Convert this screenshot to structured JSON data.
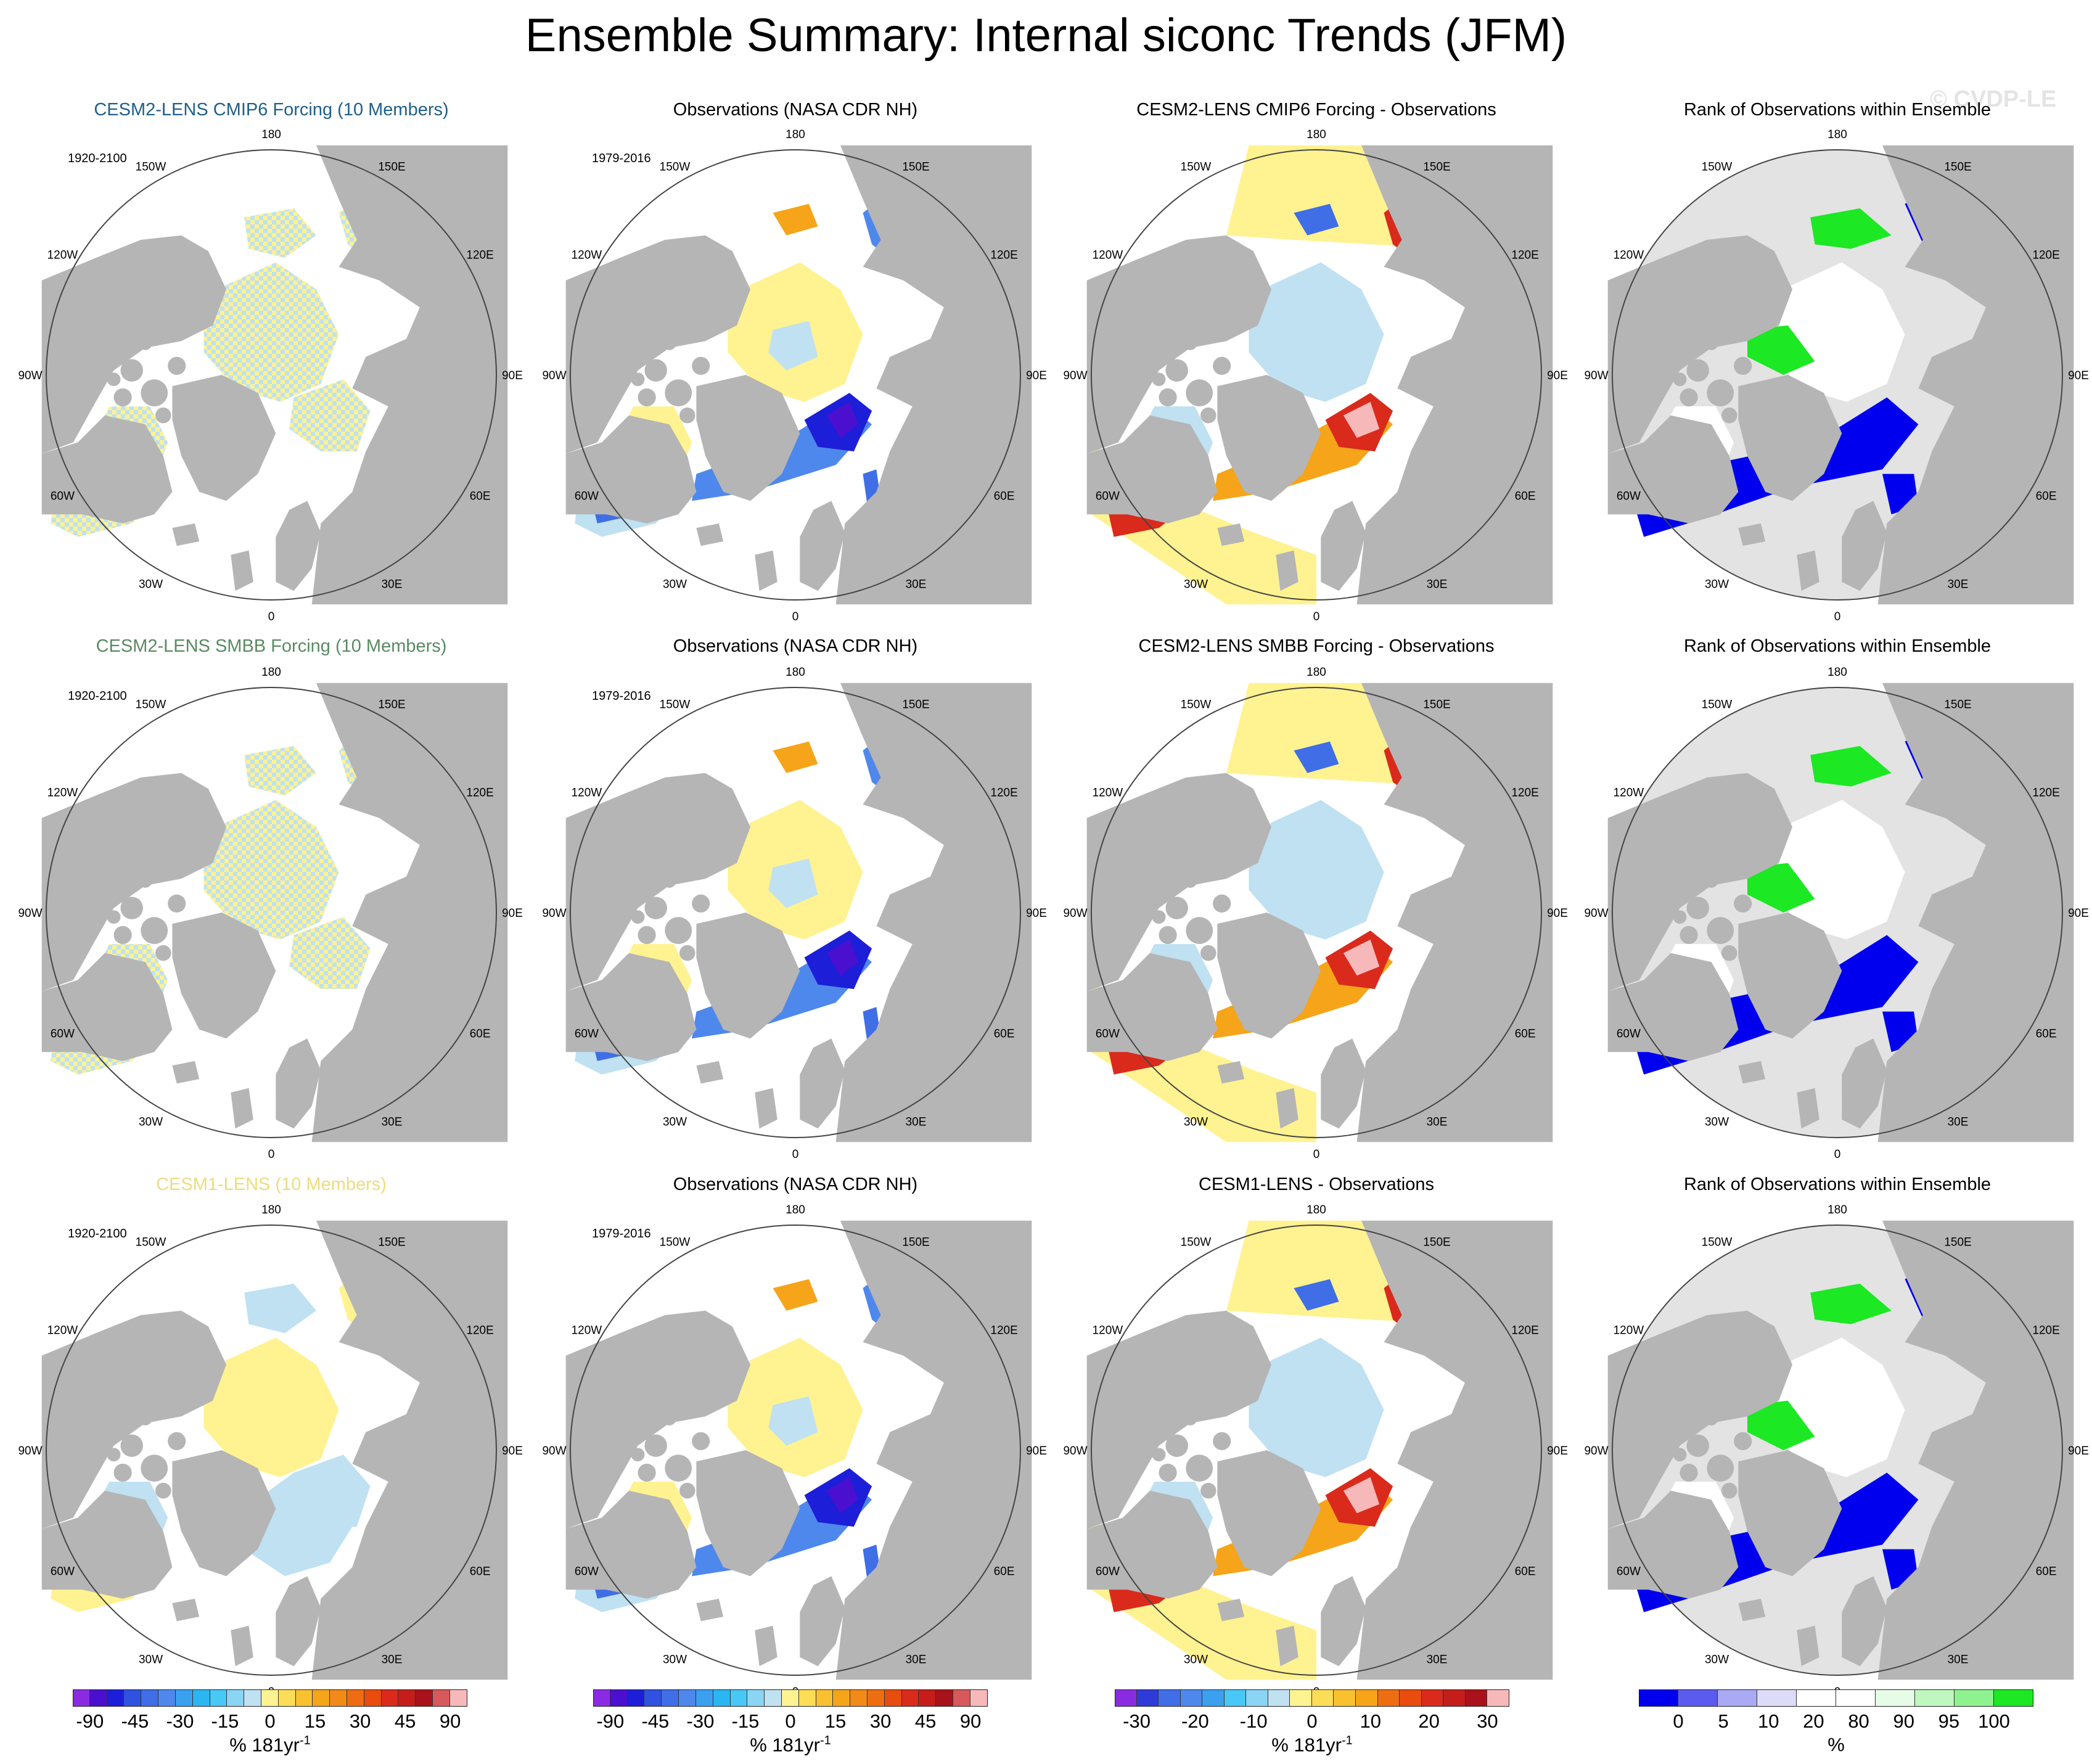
{
  "title": "Ensemble Summary: Internal siconc Trends (JFM)",
  "watermark": "© CVDP-LE",
  "longitude_labels": [
    "180",
    "150E",
    "120E",
    "90E",
    "60E",
    "30E",
    "0",
    "30W",
    "60W",
    "90W",
    "120W",
    "150W"
  ],
  "colors": {
    "land": "#b5b5b5",
    "ocean": "#ffffff",
    "missing_ocean": "#e3e3e3",
    "pale_yellow": "#fff291",
    "pale_blue": "#bfe1f2",
    "dark_blue": "#1d1ed8",
    "deep_purple": "#4b0fd0",
    "orange": "#f6a419",
    "red": "#d92a1c",
    "pink": "#f7b8b9",
    "rank_blue": "#0000ee",
    "rank_green": "#1ce823",
    "title_cmip6": "#1f5f8a",
    "title_smbb": "#5a8a62",
    "title_cesm1": "#eedc7e"
  },
  "rows": [
    {
      "panels": [
        {
          "title": "CESM2-LENS CMIP6 Forcing (10 Members)",
          "title_color": "#1f5f8a",
          "period": "1920-2100",
          "kind": "ens"
        },
        {
          "title": "Observations (NASA CDR NH)",
          "title_color": "#000000",
          "period": "1979-2016",
          "kind": "obs"
        },
        {
          "title": "CESM2-LENS CMIP6 Forcing - Observations",
          "title_color": "#000000",
          "period": "",
          "kind": "diff"
        },
        {
          "title": "Rank of Observations within Ensemble",
          "title_color": "#000000",
          "period": "",
          "kind": "rank"
        }
      ]
    },
    {
      "panels": [
        {
          "title": "CESM2-LENS SMBB Forcing (10 Members)",
          "title_color": "#5a8a62",
          "period": "1920-2100",
          "kind": "ens"
        },
        {
          "title": "Observations (NASA CDR NH)",
          "title_color": "#000000",
          "period": "1979-2016",
          "kind": "obs"
        },
        {
          "title": "CESM2-LENS SMBB Forcing - Observations",
          "title_color": "#000000",
          "period": "",
          "kind": "diff"
        },
        {
          "title": "Rank of Observations within Ensemble",
          "title_color": "#000000",
          "period": "",
          "kind": "rank"
        }
      ]
    },
    {
      "panels": [
        {
          "title": "CESM1-LENS (10 Members)",
          "title_color": "#eedc7e",
          "period": "1920-2100",
          "kind": "ens_cesm1"
        },
        {
          "title": "Observations (NASA CDR NH)",
          "title_color": "#000000",
          "period": "1979-2016",
          "kind": "obs"
        },
        {
          "title": "CESM1-LENS - Observations",
          "title_color": "#000000",
          "period": "",
          "kind": "diff"
        },
        {
          "title": "Rank of Observations within Ensemble",
          "title_color": "#000000",
          "period": "",
          "kind": "rank"
        }
      ]
    }
  ],
  "colorbars": [
    {
      "colors": [
        "#8a2be2",
        "#4b0fd0",
        "#1d1ed8",
        "#2f52e0",
        "#3f6ee6",
        "#4f88ec",
        "#3aa0f0",
        "#2bb6f3",
        "#48c8f6",
        "#8ad4f4",
        "#bfe1f2",
        "#fff291",
        "#fddc57",
        "#f9c02f",
        "#f6a419",
        "#f18a17",
        "#ef6d12",
        "#e84c0f",
        "#d92a1c",
        "#c41d1a",
        "#a9121a",
        "#d6595b",
        "#f7b8b9"
      ],
      "ticks": [
        "-90",
        "-45",
        "-30",
        "-15",
        "0",
        "15",
        "30",
        "45",
        "90"
      ],
      "unit": "% 181yr",
      "unit_sup": "-1"
    },
    {
      "colors": [
        "#8a2be2",
        "#4b0fd0",
        "#1d1ed8",
        "#2f52e0",
        "#3f6ee6",
        "#4f88ec",
        "#3aa0f0",
        "#2bb6f3",
        "#48c8f6",
        "#8ad4f4",
        "#bfe1f2",
        "#fff291",
        "#fddc57",
        "#f9c02f",
        "#f6a419",
        "#f18a17",
        "#ef6d12",
        "#e84c0f",
        "#d92a1c",
        "#c41d1a",
        "#a9121a",
        "#d6595b",
        "#f7b8b9"
      ],
      "ticks": [
        "-90",
        "-45",
        "-30",
        "-15",
        "0",
        "15",
        "30",
        "45",
        "90"
      ],
      "unit": "% 181yr",
      "unit_sup": "-1"
    },
    {
      "colors": [
        "#8a2be2",
        "#2f3bd8",
        "#3f6ee6",
        "#4f88ec",
        "#3aa0f0",
        "#48c8f6",
        "#8ad4f4",
        "#bfe1f2",
        "#fff291",
        "#fddc57",
        "#f9c02f",
        "#f6a419",
        "#ef6d12",
        "#e84c0f",
        "#d92a1c",
        "#c41d1a",
        "#a9121a",
        "#f7b8b9"
      ],
      "ticks": [
        "-30",
        "-20",
        "-10",
        "0",
        "10",
        "20",
        "30"
      ],
      "unit": "% 181yr",
      "unit_sup": "-1"
    },
    {
      "colors": [
        "#0000ee",
        "#5b5bf0",
        "#a9a9f4",
        "#dcdcf8",
        "#ffffff",
        "#ffffff",
        "#e6fce6",
        "#bff7bf",
        "#8ef28e",
        "#1ce823"
      ],
      "ticks": [
        "0",
        "5",
        "10",
        "20",
        "80",
        "90",
        "95",
        "100"
      ],
      "unit": "%",
      "unit_sup": ""
    }
  ]
}
